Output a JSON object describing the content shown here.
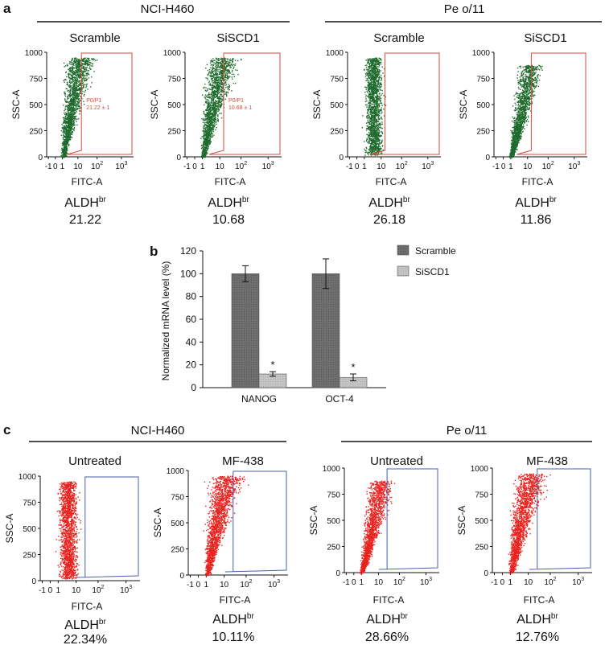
{
  "figure": {
    "panel_a": {
      "letter": "a",
      "groups": [
        {
          "title": "NCI-H460"
        },
        {
          "title": "Pe o/11"
        }
      ],
      "plots": [
        {
          "condition": "Scramble",
          "ylabel": "SSC-A",
          "xlabel": "FITC-A",
          "metric_label": "ALDH",
          "metric_sup": "br",
          "value": "21.22",
          "gate_text_1": "P0/P1",
          "gate_text_2": "21.22 ± 1"
        },
        {
          "condition": "SiSCD1",
          "ylabel": "SSC-A",
          "xlabel": "FITC-A",
          "metric_label": "ALDH",
          "metric_sup": "br",
          "value": "10.68",
          "gate_text_1": "P0/P1",
          "gate_text_2": "10.68 ± 1"
        },
        {
          "condition": "Scramble",
          "ylabel": "SSC-A",
          "xlabel": "FITC-A",
          "metric_label": "ALDH",
          "metric_sup": "br",
          "value": "26.18"
        },
        {
          "condition": "SiSCD1",
          "ylabel": "SSC-A",
          "xlabel": "FITC-A",
          "metric_label": "ALDH",
          "metric_sup": "br",
          "value": "11.86"
        }
      ]
    },
    "panel_c": {
      "letter": "c",
      "groups": [
        {
          "title": "NCI-H460"
        },
        {
          "title": "Pe o/11"
        }
      ],
      "plots": [
        {
          "condition": "Untreated",
          "ylabel": "SSC-A",
          "xlabel": "FITC-A",
          "metric_label": "ALDH",
          "metric_sup": "br",
          "value": "22.34%"
        },
        {
          "condition": "MF-438",
          "ylabel": "SSC-A",
          "xlabel": "FITC-A",
          "metric_label": "ALDH",
          "metric_sup": "br",
          "value": "10.11%"
        },
        {
          "condition": "Untreated",
          "ylabel": "SSC-A",
          "xlabel": "FITC-A",
          "metric_label": "ALDH",
          "metric_sup": "br",
          "value": "28.66%"
        },
        {
          "condition": "MF-438",
          "ylabel": "SSC-A",
          "xlabel": "FITC-A",
          "metric_label": "ALDH",
          "metric_sup": "br",
          "value": "12.76%"
        }
      ]
    },
    "scatter_axes": {
      "y_ticks": [
        "0",
        "250",
        "500",
        "750",
        "1000"
      ],
      "x_ticks": [
        {
          "base": "-1"
        },
        {
          "base": "0"
        },
        {
          "base": "1"
        },
        {
          "base": "10"
        },
        {
          "base": "10",
          "sup": "2"
        },
        {
          "base": "10",
          "sup": "3"
        }
      ]
    },
    "colors": {
      "green_dots": "#1f6b2d",
      "red_dots": "#e8231f",
      "red_gate": "#d94a3a",
      "blue_gate": "#4a5fb0",
      "bar_dark": "#6e6e6e",
      "bar_light": "#bdbdbd"
    }
  },
  "chart_data": {
    "type": "bar",
    "panel": "b",
    "title": "",
    "xlabel": "",
    "ylabel": "Normalized mRNA level (%)",
    "ylim": [
      0,
      120
    ],
    "yticks": [
      0,
      20,
      40,
      60,
      80,
      100,
      120
    ],
    "categories": [
      "NANOG",
      "OCT-4"
    ],
    "series": [
      {
        "name": "Scramble",
        "values": [
          100,
          100
        ],
        "errors": [
          7,
          13
        ],
        "color": "#6e6e6e"
      },
      {
        "name": "SiSCD1",
        "values": [
          12,
          9
        ],
        "errors": [
          2,
          3
        ],
        "color": "#bdbdbd"
      }
    ],
    "annotations": [
      {
        "category": "NANOG",
        "series": "SiSCD1",
        "text": "*"
      },
      {
        "category": "OCT-4",
        "series": "SiSCD1",
        "text": "*"
      }
    ],
    "legend": "top-right"
  }
}
